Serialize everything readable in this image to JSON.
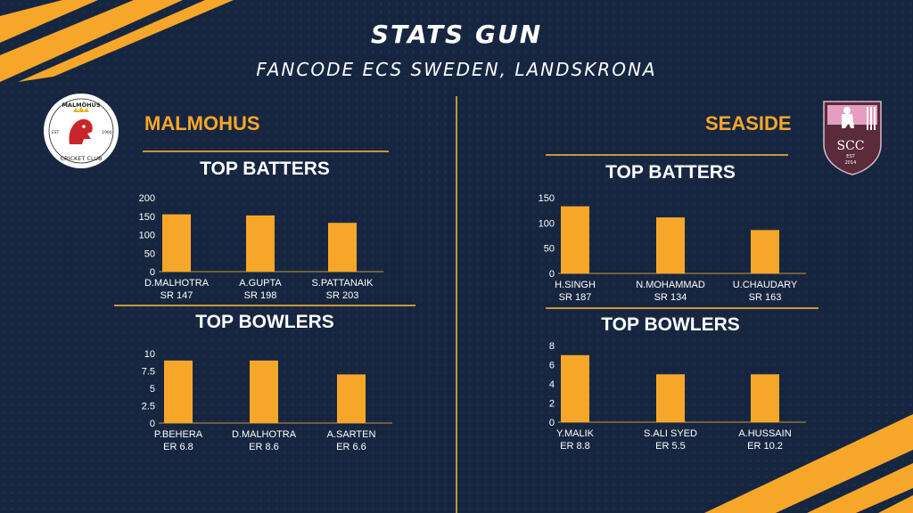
{
  "header": {
    "title": "STATS GUN",
    "subtitle": "FANCODE ECS SWEDEN, LANDSKRONA"
  },
  "colors": {
    "background": "#172640",
    "accent": "#f6a72a",
    "rule": "#c9953a"
  },
  "teams": [
    {
      "name": "MALMOHUS",
      "logo": {
        "top_text": "MALMÖHUS",
        "bottom_text": "CRICKET CLUB",
        "left_text": "EST",
        "right_text": "1960",
        "icon": "red-griffin-crest-icon"
      },
      "batters_title": "TOP BATTERS",
      "bowlers_title": "TOP BOWLERS"
    },
    {
      "name": "SEASIDE",
      "logo": {
        "text": "SCC",
        "est": "EST",
        "year": "2014",
        "icon": "batsman-shield-icon"
      },
      "batters_title": "TOP BATTERS",
      "bowlers_title": "TOP BOWLERS"
    }
  ],
  "chart_data": [
    {
      "type": "bar",
      "team": "MALMOHUS",
      "title": "TOP BATTERS",
      "categories": [
        "D.MALHOTRA",
        "A.GUPTA",
        "S.PATTANAIK"
      ],
      "sublabels": [
        "SR 147",
        "SR 198",
        "SR 203"
      ],
      "values": [
        155,
        152,
        132
      ],
      "yticks": [
        0,
        50,
        100,
        150,
        200
      ],
      "ylim": [
        0,
        200
      ]
    },
    {
      "type": "bar",
      "team": "MALMOHUS",
      "title": "TOP BOWLERS",
      "categories": [
        "P.BEHERA",
        "D.MALHOTRA",
        "A.SARTEN"
      ],
      "sublabels": [
        "ER 6.8",
        "ER 8.6",
        "ER 6.6"
      ],
      "values": [
        9,
        9,
        7
      ],
      "yticks": [
        0,
        2.5,
        5,
        7.5,
        10
      ],
      "ylim": [
        0,
        10
      ]
    },
    {
      "type": "bar",
      "team": "SEASIDE",
      "title": "TOP BATTERS",
      "categories": [
        "H.SINGH",
        "N.MOHAMMAD",
        "U.CHAUDARY"
      ],
      "sublabels": [
        "SR 187",
        "SR 134",
        "SR 163"
      ],
      "values": [
        133,
        111,
        86
      ],
      "yticks": [
        0,
        50,
        100,
        150
      ],
      "ylim": [
        0,
        150
      ]
    },
    {
      "type": "bar",
      "team": "SEASIDE",
      "title": "TOP BOWLERS",
      "categories": [
        "Y.MALIK",
        "S.ALI SYED",
        "A.HUSSAIN"
      ],
      "sublabels": [
        "ER 8.8",
        "ER 5.5",
        "ER 10.2"
      ],
      "values": [
        7,
        5,
        5
      ],
      "yticks": [
        0,
        2,
        4,
        6,
        8
      ],
      "ylim": [
        0,
        8
      ]
    }
  ]
}
